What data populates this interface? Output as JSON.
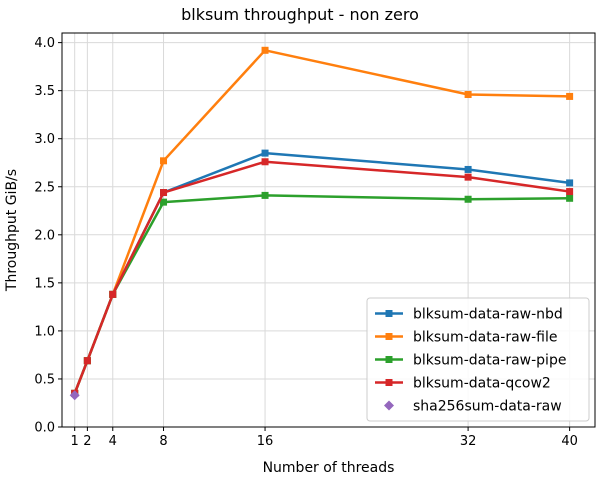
{
  "chart_data": {
    "type": "line",
    "title": "blksum throughput - non zero",
    "xlabel": "Number of threads",
    "ylabel": "Throughput GiB/s",
    "xlim": [
      0,
      42
    ],
    "ylim": [
      0.0,
      4.1
    ],
    "x_ticks": [
      1,
      2,
      4,
      8,
      16,
      32,
      40
    ],
    "y_ticks": [
      0.0,
      0.5,
      1.0,
      1.5,
      2.0,
      2.5,
      3.0,
      3.5,
      4.0
    ],
    "grid": true,
    "legend_position": "bottom-right",
    "series": [
      {
        "name": "blksum-data-raw-nbd",
        "color": "#1f77b4",
        "marker": "square",
        "x": [
          1,
          2,
          4,
          8,
          16,
          32,
          40
        ],
        "y": [
          0.35,
          0.69,
          1.38,
          2.44,
          2.85,
          2.68,
          2.54
        ]
      },
      {
        "name": "blksum-data-raw-file",
        "color": "#ff7f0e",
        "marker": "square",
        "x": [
          1,
          2,
          4,
          8,
          16,
          32,
          40
        ],
        "y": [
          0.35,
          0.69,
          1.38,
          2.77,
          3.92,
          3.46,
          3.44
        ]
      },
      {
        "name": "blksum-data-raw-pipe",
        "color": "#2ca02c",
        "marker": "square",
        "x": [
          1,
          2,
          4,
          8,
          16,
          32,
          40
        ],
        "y": [
          0.35,
          0.69,
          1.38,
          2.34,
          2.41,
          2.37,
          2.38
        ]
      },
      {
        "name": "blksum-data-qcow2",
        "color": "#d62728",
        "marker": "square",
        "x": [
          1,
          2,
          4,
          8,
          16,
          32,
          40
        ],
        "y": [
          0.35,
          0.69,
          1.38,
          2.44,
          2.76,
          2.6,
          2.45
        ]
      },
      {
        "name": "sha256sum-data-raw",
        "color": "#9467bd",
        "marker": "diamond",
        "x": [
          1
        ],
        "y": [
          0.33
        ]
      }
    ]
  }
}
